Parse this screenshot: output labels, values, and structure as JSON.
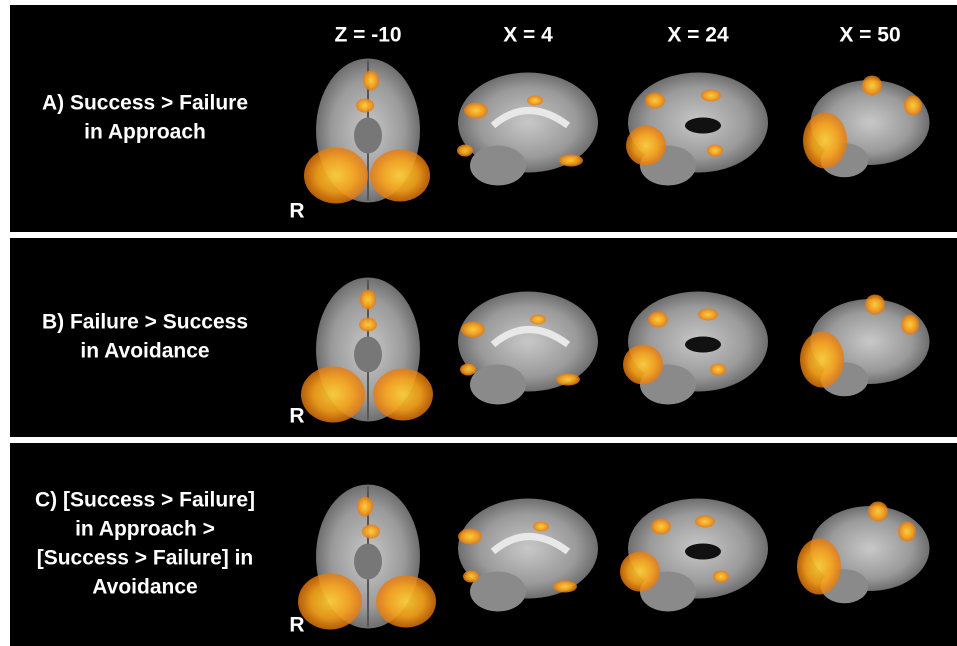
{
  "columns": [
    "Z = -10",
    "X = 4",
    "X = 24",
    "X = 50"
  ],
  "rows": [
    {
      "label": [
        "A) Success > Failure",
        "in Approach"
      ],
      "orientation": "R"
    },
    {
      "label": [
        "B) Failure > Success",
        "in Avoidance"
      ],
      "orientation": "R"
    },
    {
      "label": [
        "C) [Success > Failure]",
        "in Approach >",
        "[Success > Failure] in",
        "Avoidance"
      ],
      "orientation": "R"
    }
  ]
}
